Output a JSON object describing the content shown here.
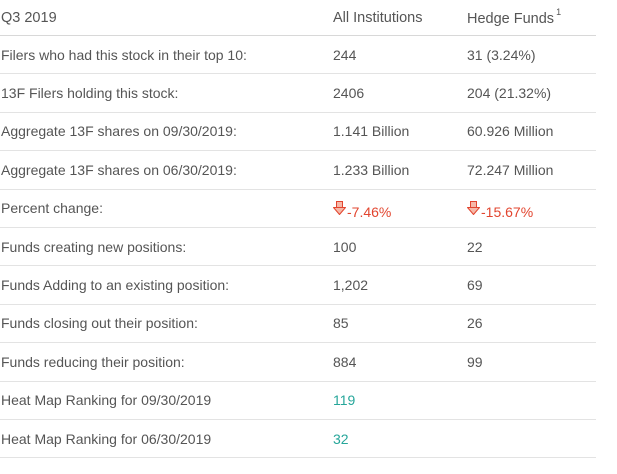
{
  "header": {
    "period": "Q3 2019",
    "col_all": "All Institutions",
    "col_hedge": "Hedge Funds",
    "col_hedge_footnote": "1"
  },
  "rows": [
    {
      "label": "Filers who had this stock in their top 10:",
      "all": "244",
      "hedge": "31 (3.24%)"
    },
    {
      "label": "13F Filers holding this stock:",
      "all": "2406",
      "hedge": "204 (21.32%)"
    },
    {
      "label": "Aggregate 13F shares on 09/30/2019:",
      "all": "1.141 Billion",
      "hedge": "60.926 Million"
    },
    {
      "label": "Aggregate 13F shares on 06/30/2019:",
      "all": "1.233 Billion",
      "hedge": "72.247 Million"
    },
    {
      "label": "Percent change:",
      "all": "-7.46%",
      "hedge": "-15.67%"
    },
    {
      "label": "Funds creating new positions:",
      "all": "100",
      "hedge": "22"
    },
    {
      "label": "Funds Adding to an existing position:",
      "all": "1,202",
      "hedge": "69"
    },
    {
      "label": "Funds closing out their position:",
      "all": "85",
      "hedge": "26"
    },
    {
      "label": "Funds reducing their position:",
      "all": "884",
      "hedge": "99"
    },
    {
      "label": "Heat Map Ranking for 09/30/2019",
      "all": "119",
      "hedge": ""
    },
    {
      "label": "Heat Map Ranking for 06/30/2019",
      "all": "32",
      "hedge": ""
    }
  ],
  "icons": {
    "down_arrow": "down-arrow-icon"
  },
  "colors": {
    "negative": "#e2452f",
    "link": "#26a69a",
    "text": "#555555",
    "divider": "#e3e3e3"
  }
}
